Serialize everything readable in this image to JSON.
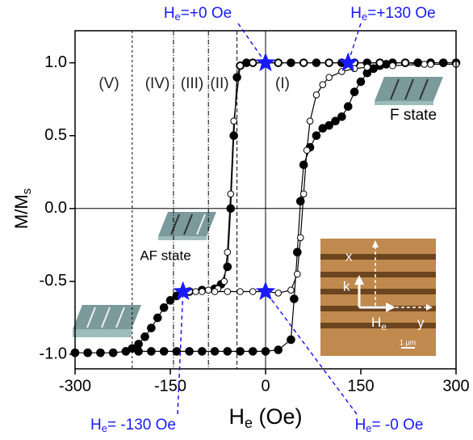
{
  "chart_data": {
    "type": "scatter",
    "xlabel": [
      "H",
      "e",
      " (Oe)"
    ],
    "ylabel": [
      "M/M",
      "s"
    ],
    "xlim": [
      -300,
      300
    ],
    "ylim": [
      -1.1,
      1.22
    ],
    "xticks": [
      -300,
      -150,
      0,
      150,
      300
    ],
    "yticks": [
      {
        "value": -1,
        "label": "-1.0"
      },
      -0.5,
      {
        "value": 0,
        "label": "0.0"
      },
      0.5,
      {
        "value": 1,
        "label": "1.0"
      }
    ],
    "zero_lines": true,
    "series": [
      {
        "marker": "filled",
        "color": "#000000",
        "x": [
          -300,
          -280,
          -260,
          -240,
          -220,
          -200,
          -180,
          -160,
          -140,
          -120,
          -100,
          -80,
          -60,
          -40,
          -20,
          0,
          20,
          40,
          45,
          50,
          55,
          60,
          70,
          80,
          90,
          100,
          110,
          120,
          130,
          140,
          150,
          160,
          170,
          180,
          190,
          200,
          220,
          240,
          260,
          280,
          300,
          280,
          260,
          240,
          220,
          200,
          180,
          160,
          140,
          120,
          100,
          80,
          60,
          40,
          20,
          0,
          -20,
          -30,
          -40,
          -45,
          -50,
          -55,
          -60,
          -70,
          -80,
          -100,
          -120,
          -140,
          -150,
          -160,
          -170,
          -180,
          -190,
          -200,
          -210,
          -220,
          -240,
          -260,
          -280,
          -300
        ],
        "values": [
          -0.99,
          -0.99,
          -0.99,
          -0.99,
          -0.98,
          -0.98,
          -0.98,
          -0.98,
          -0.98,
          -0.98,
          -0.98,
          -0.98,
          -0.98,
          -0.98,
          -0.98,
          -0.98,
          -0.97,
          -0.9,
          -0.62,
          -0.3,
          0.05,
          0.3,
          0.42,
          0.5,
          0.55,
          0.57,
          0.6,
          0.63,
          0.7,
          0.8,
          0.87,
          0.93,
          0.96,
          0.98,
          0.99,
          1.0,
          1.0,
          1.0,
          1.0,
          1.0,
          1.0,
          1.0,
          1.0,
          1.0,
          1.0,
          1.0,
          1.0,
          1.0,
          1.0,
          1.0,
          1.0,
          1.0,
          1.0,
          1.0,
          1.0,
          1.0,
          1.0,
          1.0,
          0.98,
          0.9,
          0.5,
          0.0,
          -0.4,
          -0.52,
          -0.55,
          -0.56,
          -0.57,
          -0.6,
          -0.63,
          -0.68,
          -0.75,
          -0.82,
          -0.88,
          -0.93,
          -0.96,
          -0.98,
          -0.99,
          -0.99,
          -0.99,
          -0.99
        ]
      },
      {
        "marker": "open",
        "color": "#000000",
        "x": [
          300,
          260,
          220,
          180,
          140,
          100,
          60,
          20,
          0,
          -20,
          -40,
          -50,
          -55,
          -60,
          -65,
          -75,
          -90,
          -110,
          -130,
          -120,
          -100,
          -80,
          -60,
          -40,
          -20,
          0,
          20,
          40,
          50,
          55,
          60,
          65,
          70,
          80,
          90,
          100,
          120,
          140,
          160,
          200,
          250,
          300
        ],
        "values": [
          0.99,
          0.99,
          1.0,
          1.0,
          1.0,
          1.0,
          1.0,
          1.0,
          1.0,
          1.0,
          0.98,
          0.6,
          0.1,
          -0.3,
          -0.5,
          -0.55,
          -0.56,
          -0.57,
          -0.57,
          -0.57,
          -0.57,
          -0.57,
          -0.57,
          -0.57,
          -0.57,
          -0.57,
          -0.58,
          -0.56,
          -0.45,
          -0.2,
          0.1,
          0.4,
          0.6,
          0.78,
          0.85,
          0.9,
          0.94,
          0.96,
          0.97,
          0.98,
          0.99,
          0.99
        ]
      }
    ],
    "regions": {
      "lines": [
        -210,
        -145,
        -90,
        -45
      ],
      "labels": [
        "(V)",
        "(IV)",
        "(III)",
        "(II)",
        "(I)"
      ]
    },
    "stars": {
      "color": "#1a1aff",
      "points": [
        {
          "x": 0,
          "y": 1,
          "text": [
            "H",
            "e",
            "=+0 Oe"
          ]
        },
        {
          "x": 130,
          "y": 1,
          "text": [
            "H",
            "e",
            "=+130 Oe"
          ]
        },
        {
          "x": -130,
          "y": -0.57,
          "text": [
            "H",
            "e",
            "= -130 Oe"
          ]
        },
        {
          "x": 0,
          "y": -0.57,
          "text": [
            "H",
            "e",
            "= -0 Oe"
          ]
        }
      ]
    },
    "state_labels": [
      "F state",
      "AF state"
    ],
    "inset": {
      "x": "x",
      "k": "k",
      "h": [
        "H",
        "e"
      ],
      "y": "y",
      "scale": "1 μm"
    }
  }
}
